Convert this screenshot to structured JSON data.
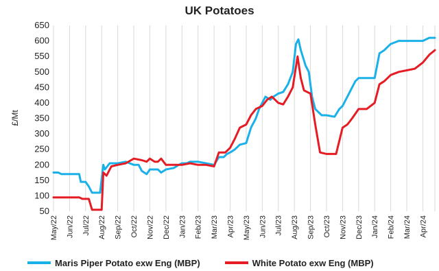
{
  "chart_data": {
    "type": "line",
    "title": "UK Potatoes",
    "ylabel": "£/Mt",
    "xlabel": "",
    "ylim": [
      50,
      650
    ],
    "yticks": [
      50,
      100,
      150,
      200,
      250,
      300,
      350,
      400,
      450,
      500,
      550,
      600,
      650
    ],
    "grid": "vertical",
    "legend": "bottom",
    "x_labels": [
      "May/22",
      "Jun/22",
      "Jul/22",
      "Aug/22",
      "Sep/22",
      "Oct/22",
      "Nov/22",
      "Dec/22",
      "Jan/23",
      "Feb/23",
      "Mar/23",
      "Apr/23",
      "May/23",
      "Jun/23",
      "Jul/23",
      "Aug/23",
      "Sep/23",
      "Oct/23",
      "Nov/23",
      "Dec/23",
      "Jan/24",
      "Feb/24",
      "Mar/24",
      "Apr/24"
    ],
    "x_range": [
      0,
      23.75
    ],
    "series": [
      {
        "name": "Maris Piper Potato exw Eng (MBP)",
        "color": "#1ab0e8",
        "points": [
          [
            0,
            175
          ],
          [
            0.3,
            175
          ],
          [
            0.5,
            170
          ],
          [
            1.6,
            170
          ],
          [
            1.7,
            145
          ],
          [
            2.0,
            145
          ],
          [
            2.2,
            130
          ],
          [
            2.4,
            110
          ],
          [
            2.9,
            110
          ],
          [
            3.1,
            200
          ],
          [
            3.2,
            185
          ],
          [
            3.5,
            205
          ],
          [
            4.0,
            205
          ],
          [
            4.5,
            210
          ],
          [
            5.0,
            200
          ],
          [
            5.3,
            200
          ],
          [
            5.5,
            180
          ],
          [
            5.8,
            170
          ],
          [
            6.0,
            185
          ],
          [
            6.5,
            185
          ],
          [
            6.7,
            175
          ],
          [
            7.0,
            185
          ],
          [
            7.5,
            190
          ],
          [
            7.8,
            200
          ],
          [
            8.0,
            205
          ],
          [
            8.3,
            205
          ],
          [
            8.5,
            210
          ],
          [
            9.0,
            210
          ],
          [
            9.5,
            205
          ],
          [
            10.0,
            200
          ],
          [
            10.3,
            225
          ],
          [
            10.6,
            225
          ],
          [
            10.8,
            235
          ],
          [
            11.0,
            240
          ],
          [
            11.3,
            250
          ],
          [
            11.6,
            265
          ],
          [
            12.0,
            270
          ],
          [
            12.3,
            320
          ],
          [
            12.6,
            350
          ],
          [
            12.8,
            380
          ],
          [
            13.0,
            400
          ],
          [
            13.2,
            420
          ],
          [
            13.5,
            410
          ],
          [
            13.7,
            420
          ],
          [
            14.0,
            430
          ],
          [
            14.3,
            435
          ],
          [
            14.6,
            460
          ],
          [
            14.9,
            500
          ],
          [
            15.1,
            590
          ],
          [
            15.25,
            605
          ],
          [
            15.4,
            570
          ],
          [
            15.7,
            520
          ],
          [
            15.9,
            500
          ],
          [
            16.1,
            420
          ],
          [
            16.3,
            380
          ],
          [
            16.7,
            360
          ],
          [
            17.0,
            360
          ],
          [
            17.5,
            355
          ],
          [
            17.8,
            380
          ],
          [
            18.0,
            390
          ],
          [
            18.3,
            420
          ],
          [
            18.6,
            450
          ],
          [
            18.8,
            470
          ],
          [
            19.0,
            480
          ],
          [
            19.5,
            480
          ],
          [
            20.0,
            480
          ],
          [
            20.3,
            560
          ],
          [
            20.6,
            570
          ],
          [
            20.8,
            580
          ],
          [
            21.0,
            590
          ],
          [
            21.5,
            600
          ],
          [
            22.0,
            600
          ],
          [
            22.5,
            600
          ],
          [
            23.0,
            600
          ],
          [
            23.4,
            610
          ],
          [
            23.75,
            610
          ]
        ]
      },
      {
        "name": "White Potato exw Eng (MBP)",
        "color": "#e51c23",
        "points": [
          [
            0,
            95
          ],
          [
            1.0,
            95
          ],
          [
            1.6,
            95
          ],
          [
            1.8,
            90
          ],
          [
            2.2,
            90
          ],
          [
            2.4,
            55
          ],
          [
            3.0,
            55
          ],
          [
            3.1,
            175
          ],
          [
            3.3,
            165
          ],
          [
            3.6,
            195
          ],
          [
            4.0,
            200
          ],
          [
            4.5,
            205
          ],
          [
            5.0,
            220
          ],
          [
            5.5,
            215
          ],
          [
            5.8,
            210
          ],
          [
            6.0,
            220
          ],
          [
            6.3,
            210
          ],
          [
            6.5,
            210
          ],
          [
            6.7,
            220
          ],
          [
            7.0,
            200
          ],
          [
            7.5,
            200
          ],
          [
            8.0,
            200
          ],
          [
            8.5,
            205
          ],
          [
            9.0,
            200
          ],
          [
            9.5,
            200
          ],
          [
            10.0,
            195
          ],
          [
            10.3,
            240
          ],
          [
            10.7,
            240
          ],
          [
            11.0,
            255
          ],
          [
            11.3,
            285
          ],
          [
            11.6,
            320
          ],
          [
            12.0,
            330
          ],
          [
            12.3,
            360
          ],
          [
            12.6,
            380
          ],
          [
            13.0,
            390
          ],
          [
            13.3,
            410
          ],
          [
            13.6,
            420
          ],
          [
            14.0,
            400
          ],
          [
            14.3,
            395
          ],
          [
            14.6,
            420
          ],
          [
            14.9,
            450
          ],
          [
            15.2,
            550
          ],
          [
            15.4,
            480
          ],
          [
            15.6,
            440
          ],
          [
            16.0,
            430
          ],
          [
            16.3,
            330
          ],
          [
            16.6,
            240
          ],
          [
            17.0,
            235
          ],
          [
            17.3,
            235
          ],
          [
            17.6,
            235
          ],
          [
            18.0,
            320
          ],
          [
            18.3,
            330
          ],
          [
            18.6,
            350
          ],
          [
            19.0,
            380
          ],
          [
            19.5,
            380
          ],
          [
            20.0,
            400
          ],
          [
            20.3,
            460
          ],
          [
            20.6,
            470
          ],
          [
            21.0,
            490
          ],
          [
            21.5,
            500
          ],
          [
            22.0,
            505
          ],
          [
            22.5,
            510
          ],
          [
            23.0,
            530
          ],
          [
            23.4,
            555
          ],
          [
            23.75,
            570
          ]
        ]
      }
    ]
  }
}
